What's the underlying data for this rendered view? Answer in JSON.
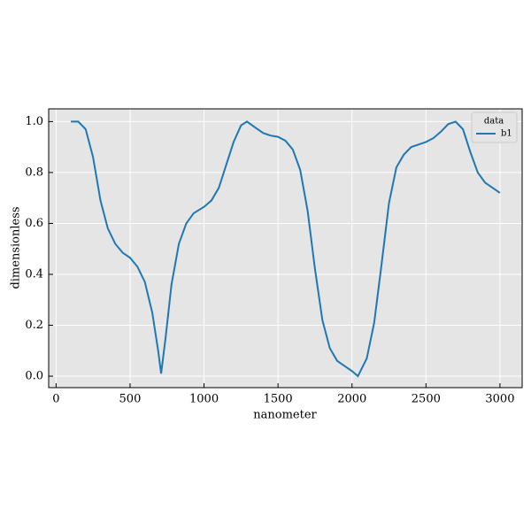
{
  "chart_data": {
    "type": "line",
    "xlabel": "nanometer",
    "ylabel": "dimensionless",
    "x": [
      100,
      150,
      200,
      250,
      300,
      350,
      400,
      450,
      500,
      550,
      600,
      650,
      690,
      710,
      740,
      780,
      830,
      880,
      930,
      1000,
      1050,
      1100,
      1150,
      1200,
      1250,
      1290,
      1350,
      1400,
      1450,
      1500,
      1550,
      1600,
      1650,
      1700,
      1750,
      1800,
      1850,
      1900,
      1950,
      2000,
      2040,
      2100,
      2150,
      2200,
      2250,
      2300,
      2350,
      2400,
      2450,
      2500,
      2550,
      2600,
      2650,
      2700,
      2750,
      2800,
      2850,
      2900,
      2950,
      3000
    ],
    "series": [
      {
        "name": "b1",
        "color": "#1f77b4",
        "values": [
          1.0,
          1.0,
          0.97,
          0.86,
          0.69,
          0.58,
          0.52,
          0.485,
          0.465,
          0.43,
          0.37,
          0.25,
          0.1,
          0.01,
          0.15,
          0.36,
          0.52,
          0.6,
          0.64,
          0.665,
          0.69,
          0.74,
          0.83,
          0.92,
          0.985,
          1.0,
          0.975,
          0.955,
          0.945,
          0.94,
          0.925,
          0.89,
          0.81,
          0.65,
          0.42,
          0.22,
          0.11,
          0.06,
          0.04,
          0.02,
          0.0,
          0.07,
          0.21,
          0.44,
          0.68,
          0.82,
          0.87,
          0.9,
          0.91,
          0.92,
          0.935,
          0.96,
          0.99,
          1.0,
          0.97,
          0.88,
          0.8,
          0.76,
          0.74,
          0.72
        ]
      }
    ],
    "legend_title": "data",
    "legend": "upper right",
    "xlim": [
      -50,
      3150
    ],
    "xticks": [
      0,
      500,
      1000,
      1500,
      2000,
      2500,
      3000
    ],
    "ylim": [
      -0.045,
      1.05
    ],
    "yticks": [
      {
        "value": 0,
        "label": "0.0"
      },
      0.2,
      0.4,
      0.6,
      0.8,
      {
        "value": 1,
        "label": "1.0"
      }
    ],
    "grid": true
  }
}
